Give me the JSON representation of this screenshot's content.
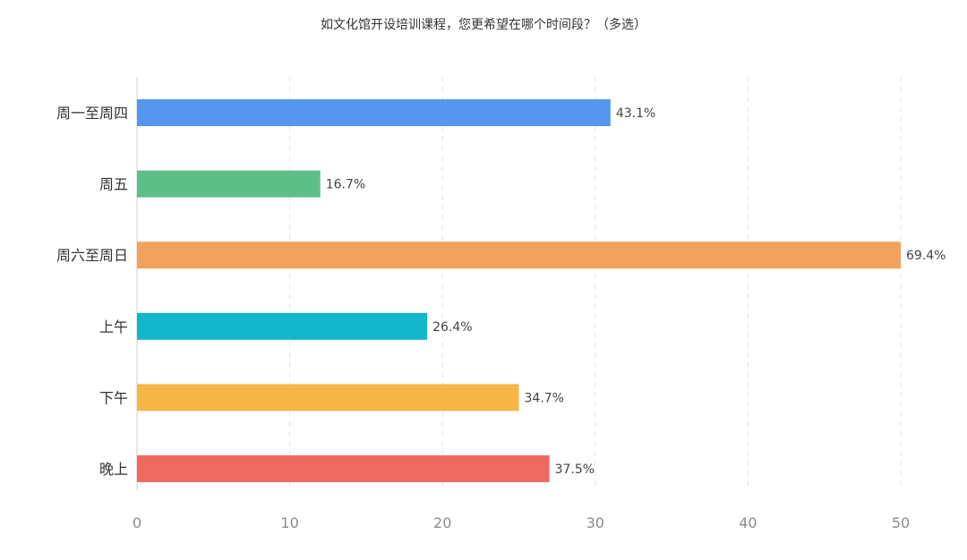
{
  "chart_data": {
    "type": "bar",
    "orientation": "horizontal",
    "title": "如文化馆开设培训课程，您更希望在哪个时间段？（多选）",
    "categories": [
      "周一至周四",
      "周五",
      "周六至周日",
      "上午",
      "下午",
      "晚上"
    ],
    "values": [
      31,
      12,
      50,
      19,
      25,
      27
    ],
    "data_labels": [
      "43.1%",
      "16.7%",
      "69.4%",
      "26.4%",
      "34.7%",
      "37.5%"
    ],
    "colors": [
      "#5596ee",
      "#5cbf88",
      "#f3a25d",
      "#12b5c9",
      "#f5b646",
      "#f0695f"
    ],
    "xlim": [
      0,
      50
    ],
    "xticks": [
      0,
      10,
      20,
      30,
      40,
      50
    ],
    "grid": true
  }
}
